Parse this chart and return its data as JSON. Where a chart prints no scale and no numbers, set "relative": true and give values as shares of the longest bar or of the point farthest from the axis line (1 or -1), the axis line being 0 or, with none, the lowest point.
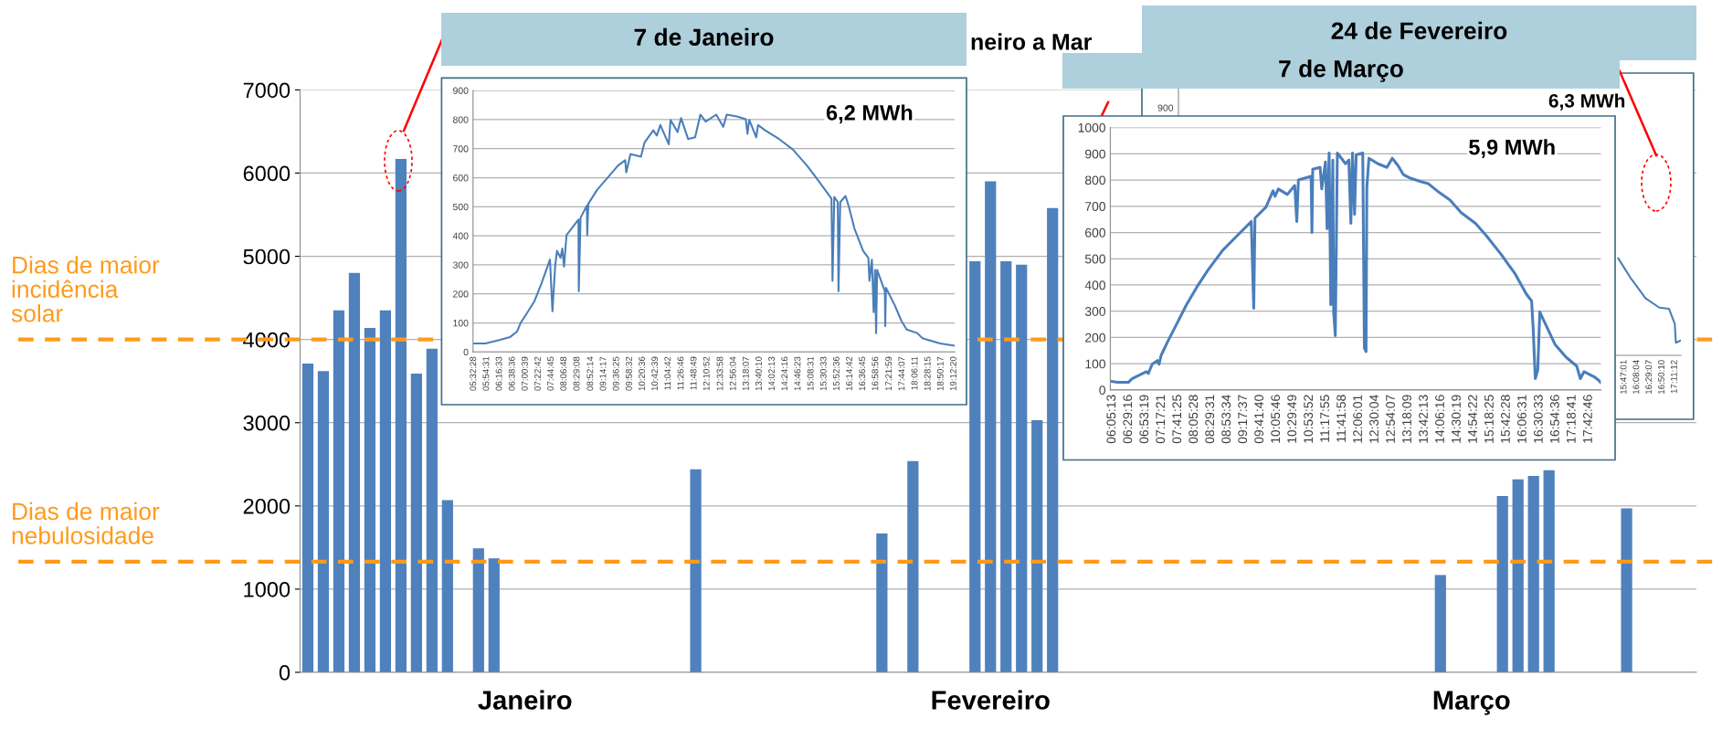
{
  "chart_data": [
    {
      "type": "bar",
      "title": "neiro a Mar",
      "color": "#4f81bd",
      "categories": [
        null,
        null,
        null,
        null,
        null,
        null,
        null,
        null,
        null,
        null,
        null,
        null,
        null,
        null,
        "Janeiro",
        null,
        null,
        null,
        null,
        null,
        null,
        null,
        null,
        null,
        null,
        null,
        null,
        null,
        null,
        null,
        null,
        null,
        null,
        null,
        null,
        null,
        null,
        null,
        null,
        null,
        null,
        null,
        null,
        null,
        "Fevereiro",
        null,
        null,
        null,
        null,
        null,
        null,
        null,
        null,
        null,
        null,
        null,
        null,
        null,
        null,
        null,
        null,
        null,
        null,
        null,
        null,
        null,
        null,
        null,
        null,
        null,
        null,
        null,
        null,
        null,
        null,
        "Março",
        null,
        null,
        null,
        null,
        null,
        null,
        null,
        null,
        null,
        null,
        null,
        null,
        null,
        null
      ],
      "values": [
        3710,
        3620,
        4350,
        4800,
        4140,
        4350,
        6170,
        3590,
        3890,
        2070,
        null,
        1490,
        1370,
        null,
        null,
        null,
        null,
        null,
        null,
        null,
        null,
        null,
        null,
        null,
        null,
        2440,
        null,
        null,
        null,
        null,
        null,
        null,
        null,
        null,
        null,
        null,
        null,
        1670,
        null,
        2540,
        null,
        null,
        null,
        4940,
        5900,
        4940,
        4900,
        3030,
        5580,
        null,
        null,
        null,
        null,
        null,
        null,
        null,
        null,
        null,
        null,
        null,
        null,
        null,
        null,
        null,
        null,
        null,
        null,
        null,
        null,
        null,
        null,
        null,
        null,
        1170,
        null,
        null,
        null,
        2120,
        2320,
        2360,
        2430,
        null,
        null,
        null,
        null,
        1970,
        null,
        null,
        null,
        null
      ],
      "ylim": [
        0,
        7000
      ],
      "yticks": [
        0,
        1000,
        2000,
        3000,
        4000,
        5000,
        6000,
        7000
      ],
      "grid": "y",
      "ref_lines": [
        {
          "axis": "y",
          "value": 4000,
          "label": "Dias de maior\nincidência\nsolar",
          "color": "#ff9a1a",
          "line_style": "dashed"
        },
        {
          "axis": "y",
          "value": 1330,
          "label": "Dias de maior\nnebulosidade",
          "color": "#ff9a1a",
          "line_style": "dashed"
        }
      ]
    },
    {
      "type": "line",
      "title": "7 de Janeiro",
      "color": "#4a7ebb",
      "annotations": [
        "6,2 MWh"
      ],
      "x": [
        5.54,
        5.87,
        6.27,
        6.57,
        6.77,
        6.88,
        7.01,
        7.26,
        7.46,
        7.71,
        7.78,
        7.86,
        7.91,
        8.01,
        8.06,
        8.11,
        8.18,
        8.52,
        8.53,
        8.58,
        8.76,
        8.77,
        8.8,
        9.05,
        9.65,
        9.85,
        9.88,
        10.0,
        10.3,
        10.4,
        10.65,
        10.75,
        10.85,
        11.09,
        11.14,
        11.34,
        11.44,
        11.64,
        11.84,
        11.99,
        12.14,
        12.44,
        12.64,
        12.74,
        13.03,
        13.28,
        13.33,
        13.38,
        13.58,
        13.63,
        13.83,
        14.23,
        14.62,
        15.02,
        15.32,
        15.72,
        15.75,
        15.8,
        15.9,
        15.92,
        15.97,
        16.12,
        16.22,
        16.37,
        16.62,
        16.77,
        16.8,
        16.87,
        16.92,
        16.96,
        16.99,
        17.02,
        17.24,
        17.25,
        17.27,
        17.52,
        17.71,
        17.86,
        18.16,
        18.31,
        18.81,
        19.21
      ],
      "values": [
        29,
        29,
        41,
        51,
        70,
        101,
        125,
        173,
        233,
        318,
        140,
        300,
        348,
        324,
        356,
        294,
        402,
        456,
        209,
        462,
        504,
        402,
        510,
        558,
        642,
        660,
        618,
        681,
        672,
        721,
        763,
        745,
        781,
        715,
        799,
        757,
        805,
        733,
        739,
        817,
        793,
        817,
        775,
        817,
        811,
        801,
        751,
        799,
        739,
        781,
        763,
        733,
        697,
        642,
        594,
        528,
        245,
        534,
        516,
        209,
        516,
        537,
        498,
        426,
        348,
        324,
        245,
        318,
        137,
        282,
        65,
        282,
        209,
        89,
        221,
        161,
        107,
        77,
        65,
        47,
        29,
        22
      ],
      "xlim": [
        5.52,
        19.23
      ],
      "ylim": [
        0,
        900
      ],
      "yticks": [
        0,
        100,
        200,
        300,
        400,
        500,
        600,
        700,
        800,
        900
      ],
      "grid": "y",
      "xticks": [
        {
          "value": 5.54111,
          "label": "05:32:28"
        },
        {
          "value": 5.90861,
          "label": "05:54:31"
        },
        {
          "value": 6.27583,
          "label": "06:16:33"
        },
        {
          "value": 6.64333,
          "label": "06:38:36"
        },
        {
          "value": 7.01083,
          "label": "07:00:39"
        },
        {
          "value": 7.37833,
          "label": "07:22:42"
        },
        {
          "value": 7.74583,
          "label": "07:44:45"
        },
        {
          "value": 8.11333,
          "label": "08:06:48"
        },
        {
          "value": 8.48556,
          "label": "08:29:08"
        },
        {
          "value": 8.87056,
          "label": "08:52:14"
        },
        {
          "value": 9.23806,
          "label": "09:14:17"
        },
        {
          "value": 9.60694,
          "label": "09:36:25"
        },
        {
          "value": 9.97556,
          "label": "09:58:32"
        },
        {
          "value": 10.34333,
          "label": "10:20:36"
        },
        {
          "value": 10.71083,
          "label": "10:42:39"
        },
        {
          "value": 11.07833,
          "label": "11:04:42"
        },
        {
          "value": 11.44611,
          "label": "11:26:46"
        },
        {
          "value": 11.81361,
          "label": "11:48:49"
        },
        {
          "value": 12.18111,
          "label": "12:10:52"
        },
        {
          "value": 12.56611,
          "label": "12:33:58"
        },
        {
          "value": 12.93444,
          "label": "12:56:04"
        },
        {
          "value": 13.30194,
          "label": "13:18:07"
        },
        {
          "value": 13.66944,
          "label": "13:40:10"
        },
        {
          "value": 14.03694,
          "label": "14:02:13"
        },
        {
          "value": 14.40444,
          "label": "14:24:16"
        },
        {
          "value": 14.77306,
          "label": "14:46:23"
        },
        {
          "value": 15.14194,
          "label": "15:08:31"
        },
        {
          "value": 15.50917,
          "label": "15:30:33"
        },
        {
          "value": 15.87667,
          "label": "15:52:36"
        },
        {
          "value": 16.245,
          "label": "16:14:42"
        },
        {
          "value": 16.6125,
          "label": "16:36:45"
        },
        {
          "value": 16.98222,
          "label": "16:58:56"
        },
        {
          "value": 17.36639,
          "label": "17:21:59"
        },
        {
          "value": 17.73528,
          "label": "17:44:07"
        },
        {
          "value": 18.10306,
          "label": "18:06:11"
        },
        {
          "value": 18.47083,
          "label": "18:28:15"
        },
        {
          "value": 18.83806,
          "label": "18:50:17"
        },
        {
          "value": 19.20556,
          "label": "19:12:20"
        }
      ]
    },
    {
      "type": "line",
      "title": "24 de Fevereiro",
      "color": "#4a7ebb",
      "annotations": [
        "6,3 MWh",
        "900"
      ],
      "relative": true,
      "x": [
        15.62,
        15.95,
        16.38,
        16.76,
        17.03,
        17.19,
        17.22,
        17.35
      ],
      "values": [
        1,
        0.805,
        0.588,
        0.492,
        0.48,
        0.325,
        0.13,
        0.153
      ],
      "xlim": [
        3.4,
        17.36
      ],
      "xticks": [
        {
          "value": 15.78361,
          "label": "15:47:01"
        },
        {
          "value": 16.13444,
          "label": "16:08:04"
        },
        {
          "value": 16.48528,
          "label": "16:29:07"
        },
        {
          "value": 16.83611,
          "label": "16:50:10"
        },
        {
          "value": 17.18667,
          "label": "17:11:12"
        }
      ]
    },
    {
      "type": "line",
      "title": "7 de Março",
      "color": "#4a7ebb",
      "annotations": [
        "5,9 MWh"
      ],
      "x": [
        6.06,
        6.22,
        6.48,
        6.57,
        6.92,
        6.97,
        7.06,
        7.19,
        7.23,
        7.28,
        7.45,
        7.63,
        7.9,
        8.16,
        8.42,
        8.78,
        9.13,
        9.48,
        9.54,
        9.57,
        9.84,
        10.01,
        10.06,
        10.14,
        10.36,
        10.54,
        10.59,
        10.63,
        10.94,
        10.96,
        10.98,
        11.16,
        11.2,
        11.29,
        11.33,
        11.38,
        11.42,
        11.47,
        11.49,
        11.53,
        11.58,
        11.78,
        11.86,
        11.91,
        11.95,
        12.0,
        12.04,
        12.2,
        12.24,
        12.28,
        12.3,
        12.35,
        12.57,
        12.79,
        12.92,
        13.06,
        13.19,
        13.36,
        13.63,
        13.8,
        14.07,
        14.33,
        14.6,
        14.95,
        15.22,
        15.57,
        15.92,
        16.19,
        16.32,
        16.36,
        16.41,
        16.47,
        16.52,
        16.89,
        17.16,
        17.42,
        17.51,
        17.6,
        17.85,
        17.96,
        18.0
      ],
      "values": [
        33,
        29,
        29,
        43,
        70,
        63,
        98,
        112,
        98,
        132,
        187,
        242,
        325,
        394,
        456,
        532,
        587,
        642,
        311,
        655,
        697,
        759,
        738,
        766,
        745,
        779,
        642,
        800,
        814,
        600,
        841,
        848,
        766,
        869,
        614,
        903,
        325,
        876,
        297,
        207,
        903,
        862,
        876,
        635,
        903,
        669,
        896,
        903,
        160,
        146,
        773,
        883,
        862,
        848,
        883,
        855,
        821,
        807,
        793,
        786,
        752,
        724,
        676,
        635,
        587,
        518,
        442,
        366,
        339,
        229,
        43,
        77,
        297,
        174,
        125,
        91,
        43,
        70,
        50,
        36,
        29
      ],
      "xlim": [
        6.04,
        18.01
      ],
      "ylim": [
        0,
        1000
      ],
      "yticks": [
        0,
        100,
        200,
        300,
        400,
        500,
        600,
        700,
        800,
        900,
        1000
      ],
      "grid": "y",
      "xticks": [
        {
          "value": 6.08694,
          "label": "06:05:13"
        },
        {
          "value": 6.48778,
          "label": "06:29:16"
        },
        {
          "value": 6.88861,
          "label": "06:53:19"
        },
        {
          "value": 7.28917,
          "label": "07:17:21"
        },
        {
          "value": 7.69028,
          "label": "07:41:25"
        },
        {
          "value": 8.09111,
          "label": "08:05:28"
        },
        {
          "value": 8.49194,
          "label": "08:29:31"
        },
        {
          "value": 8.89278,
          "label": "08:53:34"
        },
        {
          "value": 9.29361,
          "label": "09:17:37"
        },
        {
          "value": 9.69444,
          "label": "09:41:40"
        },
        {
          "value": 10.09611,
          "label": "10:05:46"
        },
        {
          "value": 10.49694,
          "label": "10:29:49"
        },
        {
          "value": 10.89778,
          "label": "10:53:52"
        },
        {
          "value": 11.29861,
          "label": "11:17:55"
        },
        {
          "value": 11.69944,
          "label": "11:41:58"
        },
        {
          "value": 12.10028,
          "label": "12:06:01"
        },
        {
          "value": 12.50111,
          "label": "12:30:04"
        },
        {
          "value": 12.90194,
          "label": "12:54:07"
        },
        {
          "value": 13.3025,
          "label": "13:18:09"
        },
        {
          "value": 13.70361,
          "label": "13:42:13"
        },
        {
          "value": 14.10444,
          "label": "14:06:16"
        },
        {
          "value": 14.50528,
          "label": "14:30:19"
        },
        {
          "value": 14.90611,
          "label": "14:54:22"
        },
        {
          "value": 15.30694,
          "label": "15:18:25"
        },
        {
          "value": 15.70778,
          "label": "15:42:28"
        },
        {
          "value": 16.10861,
          "label": "16:06:31"
        },
        {
          "value": 16.50917,
          "label": "16:30:33"
        },
        {
          "value": 16.91,
          "label": "16:54:36"
        },
        {
          "value": 17.31139,
          "label": "17:18:41"
        },
        {
          "value": 17.71278,
          "label": "17:42:46"
        }
      ]
    }
  ]
}
